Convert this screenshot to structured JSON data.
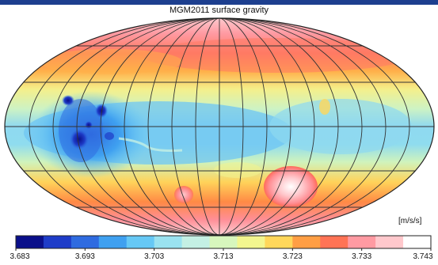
{
  "title": "MGM2011 surface gravity",
  "units": "[m/s/s]",
  "colorbar": {
    "min": 3.683,
    "max": 3.743,
    "ticks": [
      "3.683",
      "3.693",
      "3.703",
      "3.713",
      "3.723",
      "3.733",
      "3.743"
    ],
    "colors": [
      "#0a0f8a",
      "#1e3cc8",
      "#2f6be0",
      "#3fa0f0",
      "#66c8f5",
      "#9ae2f0",
      "#c4f0e4",
      "#d7f6bd",
      "#f3f68f",
      "#ffd75a",
      "#ff9e44",
      "#ff7355",
      "#ff9aa2",
      "#ffc8cc",
      "#ffffff"
    ]
  },
  "map": {
    "projection": "Mollweide",
    "graticule": true,
    "theme": {
      "frame": "#1d3f8f"
    }
  }
}
